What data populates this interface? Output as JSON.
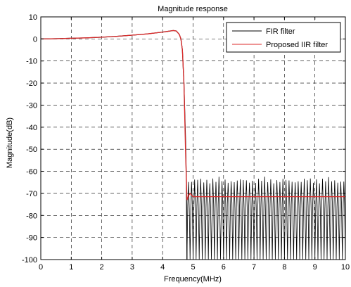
{
  "chart_data": {
    "type": "line",
    "title": "Magnitude response",
    "xlabel": "Frequency(MHz)",
    "ylabel": "Magnitude(dB)",
    "xlim": [
      0,
      10
    ],
    "ylim": [
      -100,
      10
    ],
    "xticks": [
      0,
      1,
      2,
      3,
      4,
      5,
      6,
      7,
      8,
      9,
      10
    ],
    "yticks": [
      10,
      0,
      -10,
      -20,
      -30,
      -40,
      -50,
      -60,
      -70,
      -80,
      -90,
      -100
    ],
    "grid": true,
    "legend_position": "top-right",
    "series": [
      {
        "name": "FIR filter",
        "color": "#000000",
        "passband_x": [
          0,
          0.5,
          1,
          1.5,
          2,
          2.5,
          3,
          3.5,
          4,
          4.2,
          4.35,
          4.45,
          4.55,
          4.6,
          4.65,
          4.7,
          4.75,
          4.78,
          4.8
        ],
        "passband_y": [
          0,
          0.1,
          0.3,
          0.5,
          0.8,
          1.2,
          1.7,
          2.3,
          3.1,
          3.5,
          3.8,
          3.6,
          2.0,
          0,
          -5,
          -20,
          -45,
          -65,
          -100
        ],
        "stopband_x_range": [
          4.8,
          10
        ],
        "stopband_peak_db": -62,
        "stopband_floor_db": -100
      },
      {
        "name": "Proposed IIR filter",
        "color": "#dd2a2a",
        "x": [
          0,
          0.5,
          1,
          1.5,
          2,
          2.5,
          3,
          3.5,
          4,
          4.2,
          4.35,
          4.45,
          4.55,
          4.6,
          4.65,
          4.7,
          4.75,
          4.8,
          4.85,
          4.9,
          5.0,
          6,
          7,
          8,
          9,
          10
        ],
        "y": [
          0,
          0.1,
          0.3,
          0.5,
          0.8,
          1.2,
          1.7,
          2.3,
          3.1,
          3.5,
          3.8,
          3.6,
          2.0,
          0,
          -5,
          -20,
          -50,
          -73,
          -71,
          -70,
          -71.5,
          -71.5,
          -71.5,
          -71.5,
          -71.5,
          -71.5
        ]
      }
    ]
  }
}
